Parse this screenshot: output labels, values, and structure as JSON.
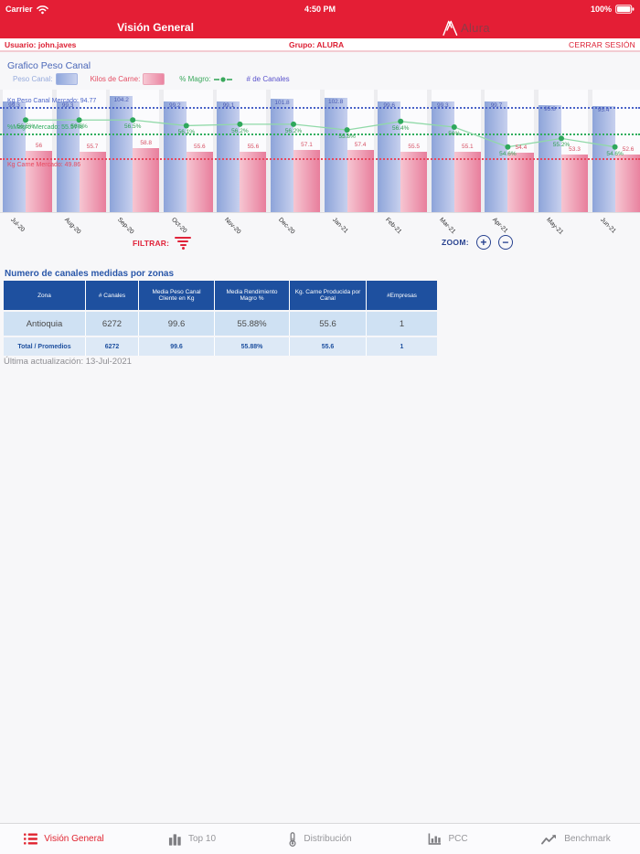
{
  "status_bar": {
    "carrier": "Carrier",
    "time": "4:50 PM",
    "battery": "100%"
  },
  "header": {
    "title": "Visión General",
    "logo_text": "Alura"
  },
  "user_bar": {
    "user_label": "Usuario: john.javes",
    "group_label": "Grupo: ALURA",
    "logout_label": "CERRAR SESIÓN"
  },
  "chart": {
    "title": "Grafico Peso Canal",
    "legend": {
      "peso_canal": "Peso Canal:",
      "kilos_carne": "Kilos de Carne:",
      "magro": "% Magro:",
      "canales": "# de Canales"
    }
  },
  "chart_data": {
    "type": "bar",
    "categories": [
      "Jul-20",
      "Aug-20",
      "Sep-20",
      "Oct-20",
      "Nov-20",
      "Dec-20",
      "Jan-21",
      "Feb-21",
      "Mar-21",
      "Apr-21",
      "May-21",
      "Jun-21"
    ],
    "series": [
      {
        "name": "Peso Canal",
        "type": "bar",
        "axis": "kg",
        "values": [
          99.3,
          99.3,
          104.2,
          99.2,
          99.1,
          101.8,
          102.8,
          99.6,
          99.3,
          99.7,
          95.8,
          95.4
        ]
      },
      {
        "name": "Kilos de Carne",
        "type": "bar",
        "axis": "kg2",
        "values": [
          56,
          55.7,
          58.8,
          55.6,
          55.6,
          57.1,
          57.4,
          55.5,
          55.1,
          54.4,
          53.3,
          52.6
        ]
      },
      {
        "name": "% Magro",
        "type": "line",
        "axis": "pct",
        "values": [
          56.5,
          56.5,
          56.5,
          56.1,
          56.2,
          56.2,
          55.8,
          56.4,
          56,
          54.6,
          55.2,
          54.6
        ]
      }
    ],
    "guides": [
      {
        "label": "Kg Peso Canal Mercado: 94.77",
        "value": 94.77,
        "axis": "kg",
        "color": "#4a63c8"
      },
      {
        "label": "%Magro Mercado: 55.57%",
        "value": 55.57,
        "axis": "pct",
        "color": "#2fae5e"
      },
      {
        "label": "Kg Carne Mercado: 49.86",
        "value": 49.86,
        "axis": "kg2",
        "color": "#e8495f"
      }
    ],
    "colors": {
      "peso_bar": "#8da4d9",
      "carne_bar": "#e87e9c",
      "magro_line": "#2fa85c"
    },
    "legend_position": "top",
    "grid": false
  },
  "controls": {
    "filter_label": "FILTRAR:",
    "zoom_label": "ZOOM:",
    "zoom_in": "+",
    "zoom_out": "−"
  },
  "table": {
    "title": "Numero de canales medidas por zonas",
    "headers": [
      "Zona",
      "# Canales",
      "Media Peso Canal Cliente en Kg",
      "Media Rendimiento Magro %",
      "Kg. Carne Producida por Canal",
      "#Empresas"
    ],
    "rows": [
      [
        "Antioquia",
        "6272",
        "99.6",
        "55.88%",
        "55.6",
        "1"
      ]
    ],
    "total_row": [
      "Total / Promedios",
      "6272",
      "99.6",
      "55.88%",
      "55.6",
      "1"
    ]
  },
  "footer_note": "Última actualización: 13-Jul-2021",
  "tab_bar": {
    "items": [
      {
        "label": "Visión General",
        "active": true
      },
      {
        "label": "Top 10",
        "active": false
      },
      {
        "label": "Distribución",
        "active": false
      },
      {
        "label": "PCC",
        "active": false
      },
      {
        "label": "Benchmark",
        "active": false
      }
    ]
  }
}
